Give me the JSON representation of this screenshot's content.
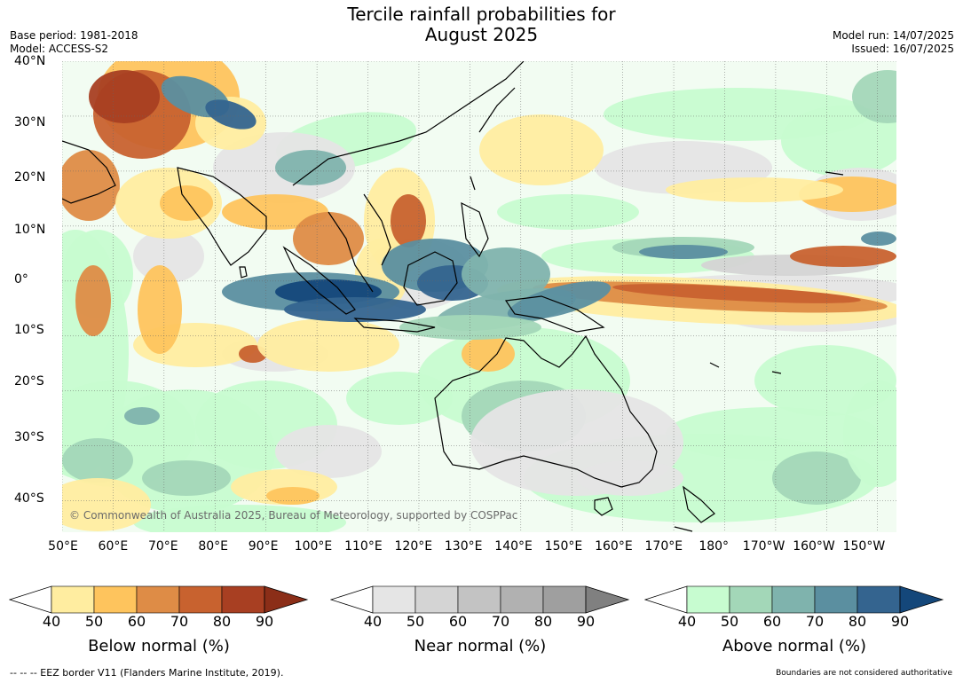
{
  "title": {
    "line1": "Tercile rainfall probabilities for",
    "line2": "August 2025"
  },
  "meta": {
    "base_period": "Base period: 1981-2018",
    "model": "Model: ACCESS-S2",
    "model_run": "Model run: 14/07/2025",
    "issued": "Issued: 16/07/2025"
  },
  "map": {
    "copyright": "© Commonwealth of Australia 2025, Bureau of Meteorology, supported by COSPPac",
    "lat_labels": [
      "40°N",
      "30°N",
      "20°N",
      "10°N",
      "0°",
      "10°S",
      "20°S",
      "30°S",
      "40°S"
    ],
    "lon_labels": [
      "50°E",
      "60°E",
      "70°E",
      "80°E",
      "90°E",
      "100°E",
      "110°E",
      "120°E",
      "130°E",
      "140°E",
      "150°E",
      "160°E",
      "170°E",
      "180°",
      "170°W",
      "160°W",
      "150°W"
    ],
    "colors": {
      "below": [
        "#ffeda0",
        "#fec45d",
        "#de8c46",
        "#c8622f",
        "#a83f22",
        "#8b2e18"
      ],
      "near": [
        "#e5e5e5",
        "#d4d4d4",
        "#c3c3c3",
        "#b1b1b1",
        "#9f9f9f",
        "#808080"
      ],
      "above": [
        "#c7fcd0",
        "#a3d7b8",
        "#7fb3ad",
        "#5b8fa0",
        "#34648f",
        "#14477a"
      ]
    }
  },
  "colorbars": {
    "below": {
      "title": "Below normal (%)",
      "ticks": [
        "40",
        "50",
        "60",
        "70",
        "80",
        "90"
      ]
    },
    "near": {
      "title": "Near normal (%)",
      "ticks": [
        "40",
        "50",
        "60",
        "70",
        "80",
        "90"
      ]
    },
    "above": {
      "title": "Above normal (%)",
      "ticks": [
        "40",
        "50",
        "60",
        "70",
        "80",
        "90"
      ]
    }
  },
  "footer": {
    "eez": "--  --  -- EEZ border V11 (Flanders Marine Institute, 2019).",
    "boundaries": "Boundaries are not considered authoritative"
  }
}
